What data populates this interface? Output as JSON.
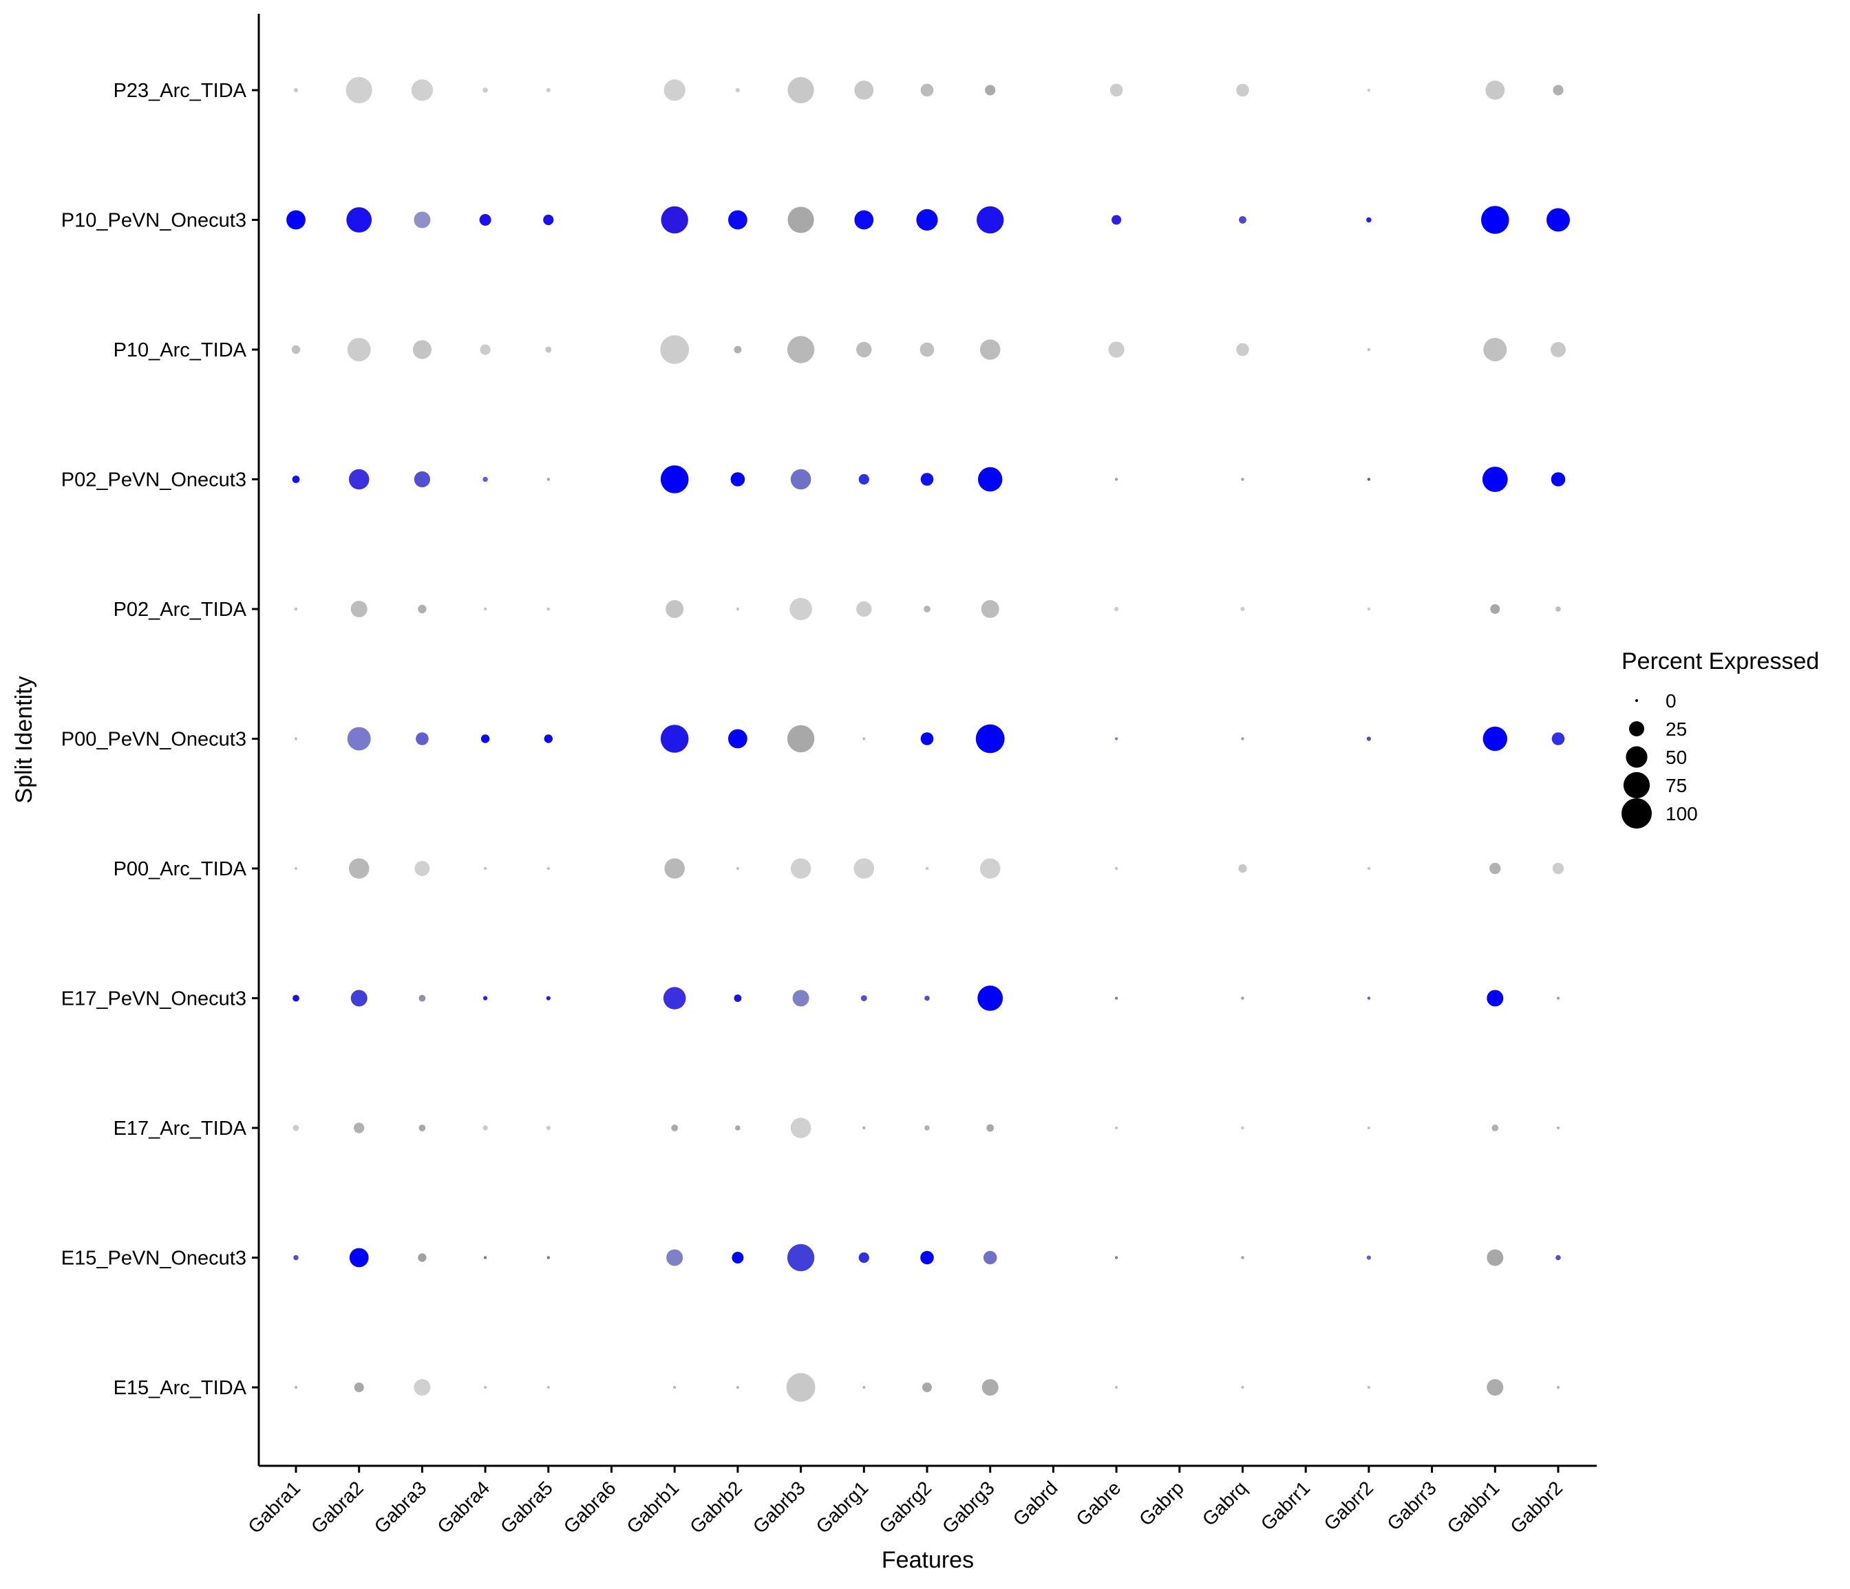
{
  "chart_data": {
    "type": "dot",
    "xlabel": "Features",
    "ylabel": "Split Identity",
    "legend": {
      "title": "Percent Expressed",
      "sizes": [
        0,
        25,
        50,
        75,
        100
      ],
      "labels": [
        "0",
        "25",
        "50",
        "75",
        "100"
      ],
      "placement": "right"
    },
    "x_categories": [
      "Gabra1",
      "Gabra2",
      "Gabra3",
      "Gabra4",
      "Gabra5",
      "Gabra6",
      "Gabrb1",
      "Gabrb2",
      "Gabrb3",
      "Gabrg1",
      "Gabrg2",
      "Gabrg3",
      "Gabrd",
      "Gabre",
      "Gabrp",
      "Gabrq",
      "Gabrr1",
      "Gabrr2",
      "Gabrr3",
      "Gabbr1",
      "Gabbr2"
    ],
    "y_categories": [
      "E15_Arc_TIDA",
      "E15_PeVN_Onecut3",
      "E17_Arc_TIDA",
      "E17_PeVN_Onecut3",
      "P00_Arc_TIDA",
      "P00_PeVN_Onecut3",
      "P02_Arc_TIDA",
      "P02_PeVN_Onecut3",
      "P10_Arc_TIDA",
      "P10_PeVN_Onecut3",
      "P23_Arc_TIDA"
    ],
    "series": [
      {
        "identity": "P23_Arc_TIDA",
        "pct": [
          2,
          75,
          50,
          3,
          2,
          0,
          50,
          2,
          75,
          40,
          18,
          12,
          0,
          18,
          0,
          18,
          0,
          1,
          0,
          40,
          12
        ],
        "color": [
          "#c8c8c8",
          "#d0d0d0",
          "#d0d0d0",
          "#cccccc",
          "#cccccc",
          "#cccccc",
          "#d0d0d0",
          "#cccccc",
          "#c8c8c8",
          "#c8c8c8",
          "#bbbbbb",
          "#aaaaaa",
          "#cccccc",
          "#cccccc",
          "#cccccc",
          "#cccccc",
          "#cccccc",
          "#cccccc",
          "#cccccc",
          "#c8c8c8",
          "#b0b0b0"
        ]
      },
      {
        "identity": "P10_PeVN_Onecut3",
        "pct": [
          40,
          70,
          30,
          15,
          12,
          0,
          80,
          40,
          75,
          40,
          50,
          80,
          0,
          10,
          0,
          6,
          0,
          3,
          0,
          85,
          60
        ],
        "color": [
          "#0000ff",
          "#1a10f0",
          "#9090c8",
          "#1a10f0",
          "#1a10f0",
          "#cccccc",
          "#2a18e0",
          "#0a08f8",
          "#a8a8a8",
          "#0a08f8",
          "#0606f8",
          "#1c12f0",
          "#cccccc",
          "#2a20e8",
          "#4040d8",
          "#4a4ad0",
          "#cccccc",
          "#2020e8",
          "#cccccc",
          "#0000ff",
          "#0000ff"
        ]
      },
      {
        "identity": "P10_Arc_TIDA",
        "pct": [
          8,
          60,
          38,
          12,
          4,
          0,
          90,
          6,
          80,
          26,
          22,
          45,
          0,
          28,
          0,
          18,
          0,
          1,
          0,
          60,
          25
        ],
        "color": [
          "#c0c0c0",
          "#cccccc",
          "#c4c4c4",
          "#cccccc",
          "#c4c4c4",
          "#cccccc",
          "#cccccc",
          "#b0b0b0",
          "#b8b8b8",
          "#bcbcbc",
          "#c0c0c0",
          "#bcbcbc",
          "#cccccc",
          "#cccccc",
          "#cccccc",
          "#cccccc",
          "#cccccc",
          "#c0c0c0",
          "#cccccc",
          "#c0c0c0",
          "#c8c8c8"
        ]
      },
      {
        "identity": "P02_PeVN_Onecut3",
        "pct": [
          6,
          45,
          28,
          3,
          1,
          0,
          85,
          22,
          45,
          12,
          18,
          65,
          0,
          1,
          0,
          1,
          0,
          1,
          0,
          70,
          22
        ],
        "color": [
          "#1010f0",
          "#3a30e0",
          "#5050d0",
          "#6060d0",
          "#a0a0c0",
          "#cccccc",
          "#0000ff",
          "#0000ff",
          "#7070c8",
          "#3030e8",
          "#1010f0",
          "#0000ff",
          "#cccccc",
          "#a0a0a0",
          "#cccccc",
          "#a0a0a0",
          "#cccccc",
          "#606090",
          "#cccccc",
          "#0000ff",
          "#0000ff"
        ]
      },
      {
        "identity": "P02_Arc_TIDA",
        "pct": [
          1,
          30,
          8,
          1,
          1,
          0,
          35,
          1,
          55,
          26,
          5,
          35,
          0,
          2,
          0,
          2,
          0,
          1,
          0,
          10,
          3
        ],
        "color": [
          "#c0c0c0",
          "#bcbcbc",
          "#b0b0b0",
          "#c4c4c4",
          "#c4c4c4",
          "#cccccc",
          "#c4c4c4",
          "#c4c4c4",
          "#d0d0d0",
          "#cccccc",
          "#b4b4b4",
          "#bcbcbc",
          "#cccccc",
          "#cccccc",
          "#cccccc",
          "#cccccc",
          "#cccccc",
          "#c8c8c8",
          "#cccccc",
          "#a8a8a8",
          "#bcbcbc"
        ]
      },
      {
        "identity": "P00_PeVN_Onecut3",
        "pct": [
          1,
          60,
          18,
          8,
          8,
          0,
          85,
          40,
          80,
          1,
          18,
          90,
          0,
          1,
          0,
          1,
          0,
          2,
          0,
          65,
          18
        ],
        "color": [
          "#c0c0c0",
          "#7a7acc",
          "#6060d0",
          "#0808f8",
          "#0808f8",
          "#cccccc",
          "#2018e8",
          "#0000ff",
          "#a8a8a8",
          "#c0c0c0",
          "#0000ff",
          "#0000ff",
          "#cccccc",
          "#8080b0",
          "#cccccc",
          "#a0a0a0",
          "#cccccc",
          "#5050b0",
          "#cccccc",
          "#0000ff",
          "#3030e8"
        ]
      },
      {
        "identity": "P00_Arc_TIDA",
        "pct": [
          1,
          45,
          25,
          1,
          1,
          0,
          45,
          1,
          45,
          45,
          1,
          45,
          0,
          1,
          0,
          8,
          0,
          1,
          0,
          14,
          14
        ],
        "color": [
          "#c4c4c4",
          "#b8b8b8",
          "#d0d0d0",
          "#c4c4c4",
          "#c4c4c4",
          "#cccccc",
          "#b8b8b8",
          "#c4c4c4",
          "#d0d0d0",
          "#d0d0d0",
          "#c4c4c4",
          "#d0d0d0",
          "#cccccc",
          "#c4c4c4",
          "#cccccc",
          "#c8c8c8",
          "#cccccc",
          "#c4c4c4",
          "#cccccc",
          "#b0b0b0",
          "#cccccc"
        ]
      },
      {
        "identity": "E17_PeVN_Onecut3",
        "pct": [
          5,
          30,
          5,
          2,
          2,
          0,
          55,
          6,
          30,
          4,
          3,
          70,
          0,
          1,
          0,
          1,
          0,
          1,
          0,
          30,
          1
        ],
        "color": [
          "#1a10e8",
          "#4040d8",
          "#9090a8",
          "#2020e8",
          "#2020e8",
          "#cccccc",
          "#3a30e0",
          "#1a10e8",
          "#8080c8",
          "#5050d0",
          "#5050d0",
          "#0000ff",
          "#cccccc",
          "#8080b0",
          "#cccccc",
          "#a0a0a0",
          "#cccccc",
          "#6060b0",
          "#cccccc",
          "#0000ff",
          "#a0a0a0"
        ]
      },
      {
        "identity": "E17_Arc_TIDA",
        "pct": [
          4,
          12,
          5,
          3,
          2,
          0,
          5,
          3,
          45,
          1,
          3,
          6,
          0,
          1,
          0,
          1,
          0,
          1,
          0,
          5,
          1
        ],
        "color": [
          "#cccccc",
          "#b0b0b0",
          "#a8a8a8",
          "#cccccc",
          "#cccccc",
          "#cccccc",
          "#a8a8a8",
          "#a8a8a8",
          "#d0d0d0",
          "#b0b0b0",
          "#b0b0b0",
          "#a8a8a8",
          "#cccccc",
          "#c4c4c4",
          "#cccccc",
          "#c4c4c4",
          "#cccccc",
          "#c4c4c4",
          "#cccccc",
          "#b0b0b0",
          "#b8b8b8"
        ]
      },
      {
        "identity": "E15_PeVN_Onecut3",
        "pct": [
          3,
          40,
          8,
          1,
          1,
          0,
          30,
          15,
          80,
          12,
          20,
          20,
          0,
          1,
          0,
          1,
          0,
          2,
          0,
          30,
          3
        ],
        "color": [
          "#5050d0",
          "#0000ff",
          "#a0a0a0",
          "#7070c0",
          "#7070c0",
          "#cccccc",
          "#8080c8",
          "#0000ff",
          "#4040d8",
          "#3030e0",
          "#0000ff",
          "#7070c8",
          "#cccccc",
          "#8080b0",
          "#cccccc",
          "#a0a0a0",
          "#cccccc",
          "#6060c0",
          "#cccccc",
          "#a8a8a8",
          "#5050d0"
        ]
      },
      {
        "identity": "E15_Arc_TIDA",
        "pct": [
          1,
          10,
          30,
          1,
          1,
          0,
          1,
          1,
          90,
          1,
          10,
          30,
          0,
          1,
          0,
          1,
          0,
          1,
          0,
          30,
          1
        ],
        "color": [
          "#b8b8b8",
          "#a8a8a8",
          "#d0d0d0",
          "#c0c0c0",
          "#c0c0c0",
          "#cccccc",
          "#b8b8b8",
          "#b8b8b8",
          "#c8c8c8",
          "#b8b8b8",
          "#a8a8a8",
          "#acacac",
          "#cccccc",
          "#c0c0c0",
          "#cccccc",
          "#c0c0c0",
          "#cccccc",
          "#c0c0c0",
          "#cccccc",
          "#acacac",
          "#b8b8b8"
        ]
      }
    ]
  }
}
